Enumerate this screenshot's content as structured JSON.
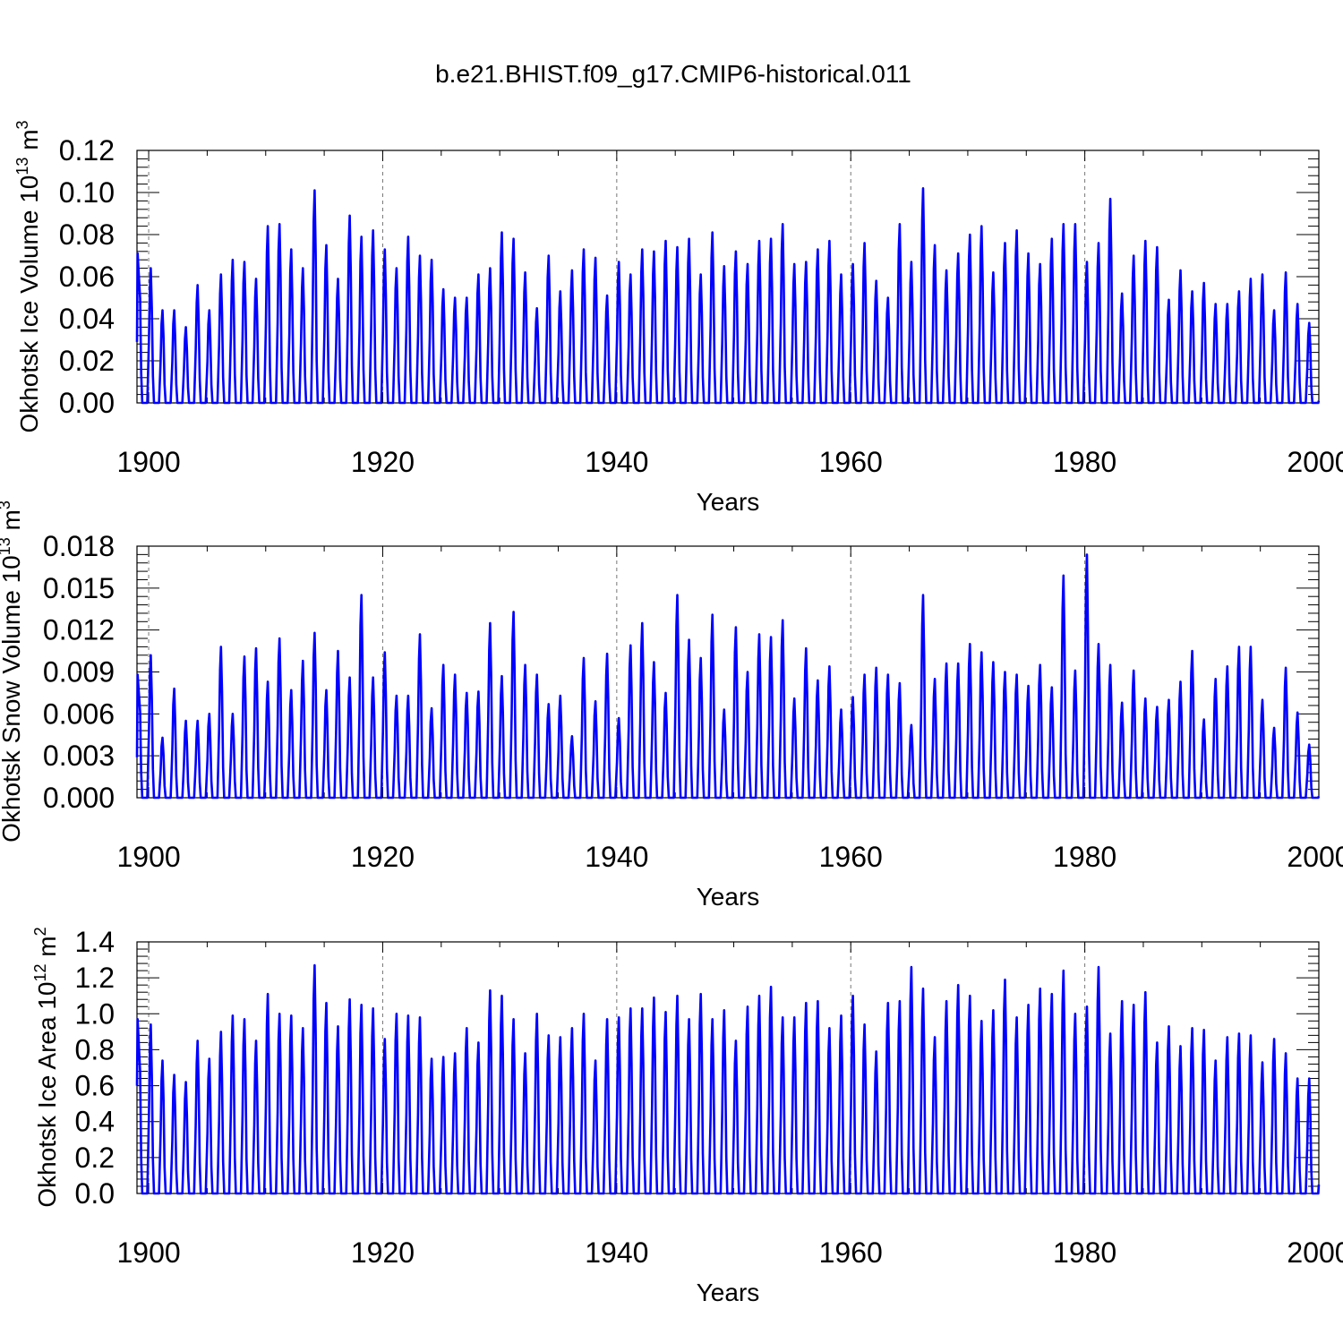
{
  "figure_title": "b.e21.BHIST.f09_g17.CMIP6-historical.011",
  "chart_data": [
    {
      "type": "line",
      "ylabel": "Okhotsk Ice Volume 10",
      "ylabel_exp": "13",
      "ylabel_unit": " m",
      "ylabel_unit_exp": "3",
      "xlabel": "Years",
      "xlim": [
        1899,
        2000
      ],
      "ylim": [
        0,
        0.12
      ],
      "yticks": [
        0,
        0.02,
        0.04,
        0.06,
        0.08,
        0.1,
        0.12
      ],
      "ytick_labels": [
        "0.00",
        "0.02",
        "0.04",
        "0.06",
        "0.08",
        "0.10",
        "0.12"
      ],
      "xticks": [
        1900,
        1920,
        1940,
        1960,
        1980,
        2000
      ],
      "xtick_labels": [
        "1900",
        "1920",
        "1940",
        "1960",
        "1980",
        "2000"
      ],
      "series": [
        {
          "name": "Okhotsk Ice Volume",
          "color": "#0000ff",
          "start_year": 1899,
          "start_value": 0.029,
          "end_value": 0.001,
          "annual_max": [
            0.071,
            0.064,
            0.044,
            0.044,
            0.036,
            0.056,
            0.044,
            0.061,
            0.068,
            0.067,
            0.059,
            0.084,
            0.085,
            0.073,
            0.064,
            0.101,
            0.075,
            0.059,
            0.089,
            0.079,
            0.082,
            0.073,
            0.064,
            0.079,
            0.07,
            0.068,
            0.054,
            0.05,
            0.05,
            0.061,
            0.064,
            0.081,
            0.078,
            0.062,
            0.045,
            0.07,
            0.053,
            0.063,
            0.073,
            0.069,
            0.051,
            0.067,
            0.061,
            0.073,
            0.072,
            0.077,
            0.074,
            0.078,
            0.061,
            0.081,
            0.065,
            0.072,
            0.066,
            0.077,
            0.078,
            0.085,
            0.066,
            0.067,
            0.073,
            0.077,
            0.061,
            0.066,
            0.076,
            0.058,
            0.05,
            0.085,
            0.067,
            0.102,
            0.075,
            0.063,
            0.071,
            0.08,
            0.084,
            0.062,
            0.076,
            0.082,
            0.071,
            0.066,
            0.078,
            0.085,
            0.085,
            0.067,
            0.076,
            0.097,
            0.052,
            0.07,
            0.077,
            0.074,
            0.049,
            0.063,
            0.053,
            0.057,
            0.047,
            0.047,
            0.053,
            0.059,
            0.061,
            0.044,
            0.062,
            0.047,
            0.038
          ]
        }
      ]
    },
    {
      "type": "line",
      "ylabel": "Okhotsk Snow Volume 10",
      "ylabel_exp": "13",
      "ylabel_unit": " m",
      "ylabel_unit_exp": "3",
      "xlabel": "Years",
      "xlim": [
        1899,
        2000
      ],
      "ylim": [
        0,
        0.018
      ],
      "yticks": [
        0,
        0.003,
        0.006,
        0.009,
        0.012,
        0.015,
        0.018
      ],
      "ytick_labels": [
        "0.000",
        "0.003",
        "0.006",
        "0.009",
        "0.012",
        "0.015",
        "0.018"
      ],
      "xticks": [
        1900,
        1920,
        1940,
        1960,
        1980,
        2000
      ],
      "xtick_labels": [
        "1900",
        "1920",
        "1940",
        "1960",
        "1980",
        "2000"
      ],
      "series": [
        {
          "name": "Okhotsk Snow Volume",
          "color": "#0000ff",
          "start_year": 1899,
          "start_value": 0.0029,
          "end_value": 0.0001,
          "annual_max": [
            0.0088,
            0.0102,
            0.0043,
            0.0078,
            0.0055,
            0.0055,
            0.006,
            0.0108,
            0.006,
            0.0101,
            0.0107,
            0.0083,
            0.0114,
            0.0077,
            0.0098,
            0.0118,
            0.0077,
            0.0105,
            0.0086,
            0.0145,
            0.0086,
            0.0104,
            0.0073,
            0.0073,
            0.0117,
            0.0064,
            0.0095,
            0.0088,
            0.0075,
            0.0076,
            0.0125,
            0.0087,
            0.0133,
            0.0095,
            0.0088,
            0.0067,
            0.0073,
            0.0044,
            0.01,
            0.0069,
            0.0103,
            0.0057,
            0.0109,
            0.0125,
            0.0097,
            0.0075,
            0.0145,
            0.0113,
            0.01,
            0.0131,
            0.0063,
            0.0122,
            0.009,
            0.0117,
            0.0115,
            0.0127,
            0.0071,
            0.0107,
            0.0084,
            0.0094,
            0.0063,
            0.0072,
            0.0088,
            0.0093,
            0.0088,
            0.0082,
            0.0052,
            0.0145,
            0.0085,
            0.0096,
            0.0096,
            0.011,
            0.0104,
            0.0097,
            0.009,
            0.0088,
            0.008,
            0.0095,
            0.0079,
            0.0159,
            0.0091,
            0.0174,
            0.011,
            0.0095,
            0.0068,
            0.0091,
            0.0071,
            0.0065,
            0.007,
            0.0083,
            0.0105,
            0.0056,
            0.0085,
            0.0094,
            0.0108,
            0.0108,
            0.007,
            0.005,
            0.0093,
            0.0061,
            0.0038
          ]
        }
      ]
    },
    {
      "type": "line",
      "ylabel": "Okhotsk Ice Area 10",
      "ylabel_exp": "12",
      "ylabel_unit": " m",
      "ylabel_unit_exp": "2",
      "xlabel": "Years",
      "xlim": [
        1899,
        2000
      ],
      "ylim": [
        0,
        1.4
      ],
      "yticks": [
        0,
        0.2,
        0.4,
        0.6,
        0.8,
        1.0,
        1.2,
        1.4
      ],
      "ytick_labels": [
        "0.0",
        "0.2",
        "0.4",
        "0.6",
        "0.8",
        "1.0",
        "1.2",
        "1.4"
      ],
      "xticks": [
        1900,
        1920,
        1940,
        1960,
        1980,
        2000
      ],
      "xtick_labels": [
        "1900",
        "1920",
        "1940",
        "1960",
        "1980",
        "2000"
      ],
      "series": [
        {
          "name": "Okhotsk Ice Area",
          "color": "#0000ff",
          "start_year": 1899,
          "start_value": 0.6,
          "end_value": 0.05,
          "annual_max": [
            0.97,
            0.94,
            0.74,
            0.66,
            0.62,
            0.85,
            0.75,
            0.9,
            0.99,
            0.97,
            0.85,
            1.11,
            1.0,
            0.99,
            0.92,
            1.27,
            1.06,
            0.93,
            1.08,
            1.05,
            1.03,
            0.86,
            1.0,
            0.99,
            0.98,
            0.75,
            0.76,
            0.78,
            0.92,
            0.84,
            1.13,
            1.1,
            0.97,
            0.78,
            1.0,
            0.88,
            0.87,
            0.92,
            1.0,
            0.74,
            0.97,
            0.98,
            1.03,
            1.03,
            1.09,
            1.01,
            1.1,
            0.97,
            1.11,
            0.97,
            1.02,
            0.85,
            1.04,
            1.1,
            1.15,
            0.98,
            0.98,
            1.06,
            1.07,
            0.92,
            0.99,
            1.1,
            0.94,
            0.79,
            1.06,
            1.07,
            1.26,
            1.14,
            0.87,
            1.07,
            1.16,
            1.1,
            0.96,
            1.02,
            1.19,
            0.98,
            1.05,
            1.14,
            1.11,
            1.24,
            1.0,
            1.04,
            1.26,
            0.89,
            1.07,
            1.05,
            1.12,
            0.84,
            0.93,
            0.82,
            0.92,
            0.91,
            0.74,
            0.87,
            0.89,
            0.88,
            0.73,
            0.86,
            0.78,
            0.64,
            0.64
          ]
        }
      ]
    }
  ]
}
